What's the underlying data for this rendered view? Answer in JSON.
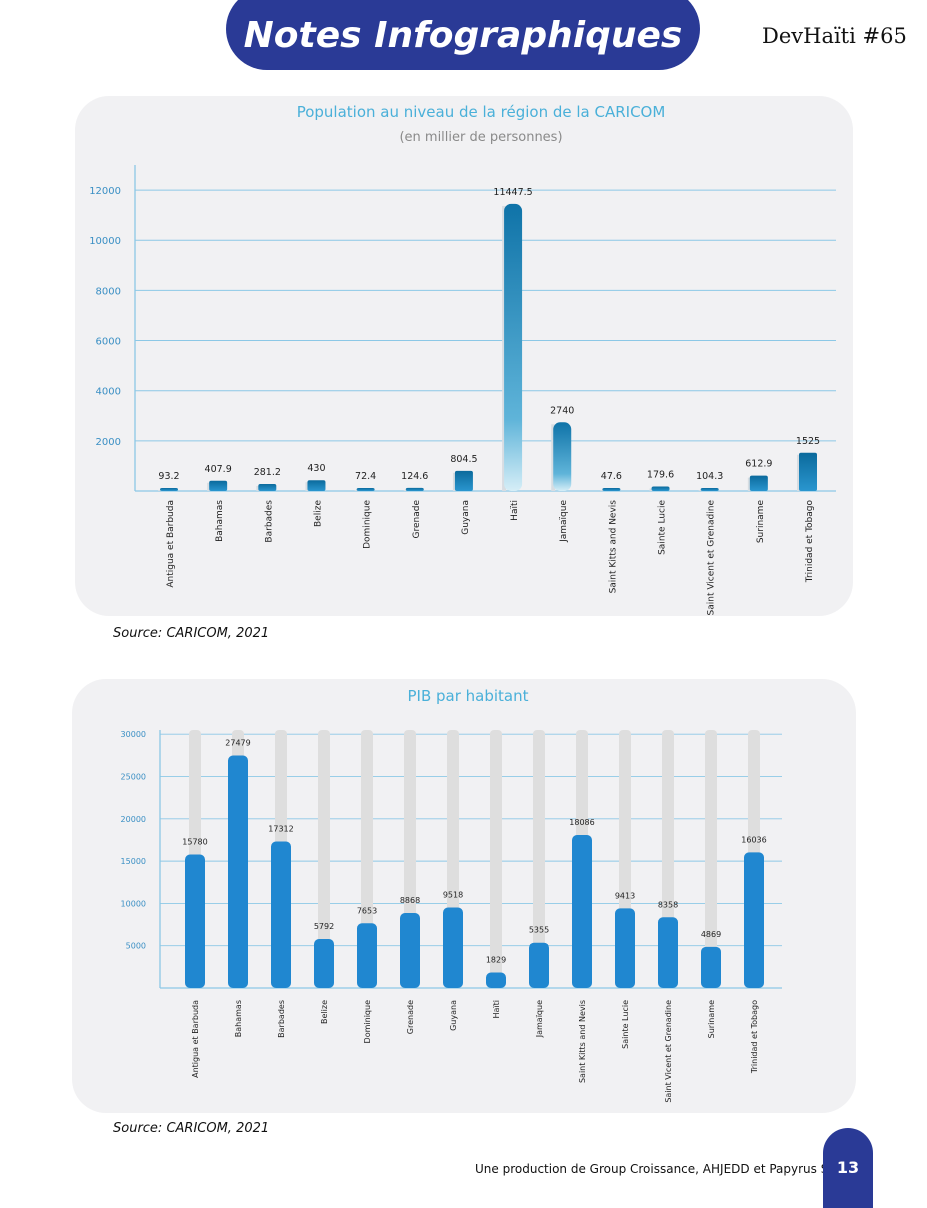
{
  "header": {
    "title": "Notes Infographiques",
    "brand": "DevHaïti #65"
  },
  "colors": {
    "header_bg": "#2a3a96",
    "panel_bg": "#f1f1f3",
    "title_color": "#4ab0d9",
    "grid_color": "#8cc8e6",
    "bar_dark_blue": "#0f73a8",
    "bar_blue": "#2087d0",
    "track_grey": "#dedede"
  },
  "chart_data": [
    {
      "type": "bar",
      "title": "Population au niveau de la région de la CARICOM",
      "subtitle": "(en millier de personnes)",
      "xlabel": "",
      "ylabel": "",
      "ylim": [
        0,
        13000
      ],
      "yticks": [
        2000,
        4000,
        6000,
        8000,
        10000,
        12000
      ],
      "grid": true,
      "categories": [
        "Antigua et Barbuda",
        "Bahamas",
        "Barbades",
        "Belize",
        "Dominique",
        "Grenade",
        "Guyana",
        "Haïti",
        "Jamaïque",
        "Saint Kitts and Nevis",
        "Sainte Lucie",
        "Saint Vicent et Grenadine",
        "Suriname",
        "Trinidad et Tobago"
      ],
      "values": [
        93.2,
        407.9,
        281.2,
        430,
        72.4,
        124.6,
        804.5,
        11447.5,
        2740,
        47.6,
        179.6,
        104.3,
        612.9,
        1525
      ],
      "value_labels": [
        "93.2",
        "407.9",
        "281.2",
        "430",
        "72.4",
        "124.6",
        "804.5",
        "11447.5",
        "2740",
        "47.6",
        "179.6",
        "104.3",
        "612.9",
        "1525"
      ]
    },
    {
      "type": "bar",
      "title": "PIB par habitant",
      "xlabel": "",
      "ylabel": "",
      "ylim": [
        0,
        30500
      ],
      "yticks": [
        5000,
        10000,
        15000,
        20000,
        25000,
        30000
      ],
      "grid": true,
      "categories": [
        "Antigua et Barbuda",
        "Bahamas",
        "Barbades",
        "Belize",
        "Dominique",
        "Grenade",
        "Guyana",
        "Haïti",
        "Jamaïque",
        "Saint Kitts and Nevis",
        "Sainte Lucie",
        "Saint Vicent et Grenadine",
        "Suriname",
        "Trinidad et Tobago"
      ],
      "values": [
        15780,
        27479,
        17312,
        5792,
        7653,
        8868,
        9518,
        1829,
        5355,
        18086,
        9413,
        8358,
        4869,
        16036
      ],
      "value_labels": [
        "15780",
        "27479",
        "17312",
        "5792",
        "7653",
        "8868",
        "9518",
        "1829",
        "5355",
        "18086",
        "9413",
        "8358",
        "4869",
        "16036"
      ]
    }
  ],
  "sources": {
    "chart1": "Source: CARICOM, 2021",
    "chart2": "Source: CARICOM, 2021"
  },
  "footer": {
    "credit": "Une production de Group Croissance, AHJEDD et Papyrus S.A.",
    "page_number": "13"
  }
}
